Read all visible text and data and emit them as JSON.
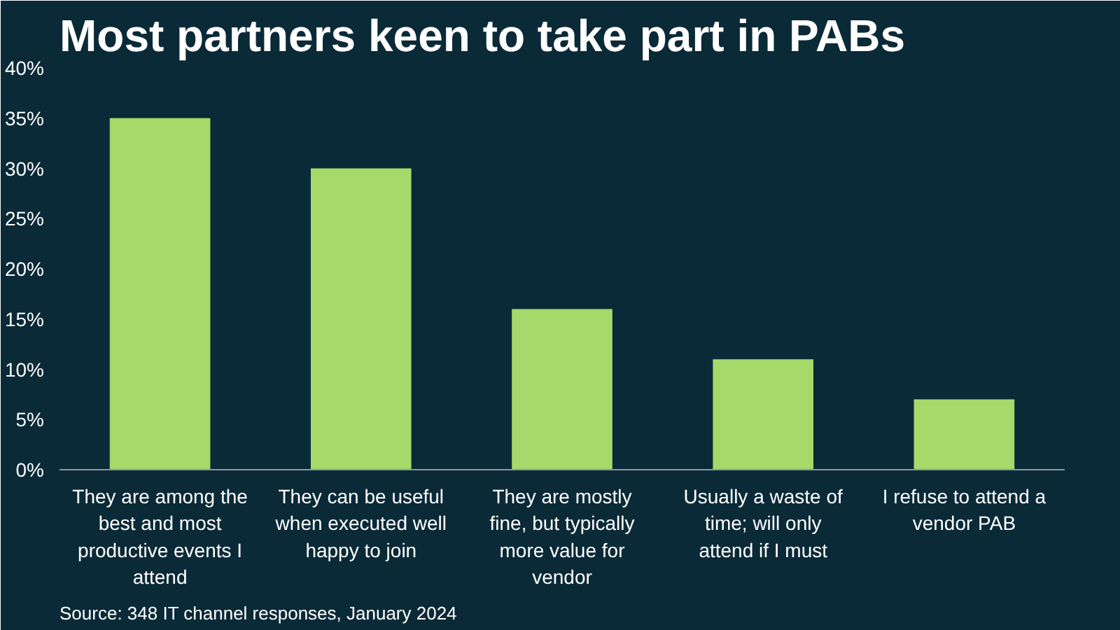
{
  "chart_data": {
    "type": "bar",
    "title": "Most partners keen to take part in PABs",
    "categories": [
      "They are among the best and most productive events I attend",
      "They can be useful when executed well happy to join",
      "They are mostly fine, but typically more value for vendor",
      "Usually a waste of time; will only attend if I must",
      "I refuse to attend a vendor PAB"
    ],
    "values": [
      35,
      30,
      16,
      11,
      7
    ],
    "color": "#a6d96a",
    "ylim": [
      0,
      40
    ],
    "yticks": [
      {
        "value": 0,
        "label": "0%"
      },
      {
        "value": 5,
        "label": "5%"
      },
      {
        "value": 10,
        "label": "10%"
      },
      {
        "value": 15,
        "label": "15%"
      },
      {
        "value": 20,
        "label": "20%"
      },
      {
        "value": 25,
        "label": "25%"
      },
      {
        "value": 30,
        "label": "30%"
      },
      {
        "value": 35,
        "label": "35%"
      },
      {
        "value": 40,
        "label": "40%"
      }
    ],
    "grid": false,
    "annotations": [
      "Source: 348 IT channel responses, January 2024"
    ]
  }
}
